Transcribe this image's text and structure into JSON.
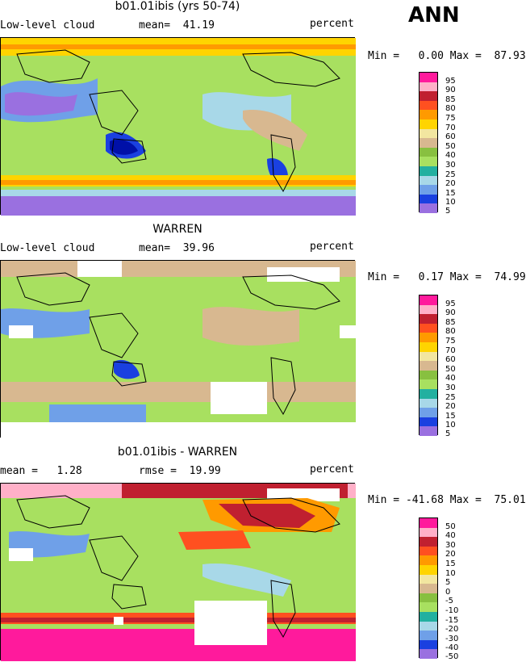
{
  "season": "ANN",
  "panels": [
    {
      "title": "b01.01ibis (yrs 50-74)",
      "left": "Low-level cloud",
      "mid": "mean=  41.19",
      "right": "percent",
      "minmax": "Min =   0.00 Max =  87.93",
      "legend": [
        "95",
        "90",
        "85",
        "80",
        "75",
        "70",
        "60",
        "50",
        "40",
        "30",
        "25",
        "20",
        "15",
        "10",
        "5"
      ]
    },
    {
      "title": "WARREN",
      "left": "Low-level cloud",
      "mid": "mean=  39.96",
      "right": "percent",
      "minmax": "Min =   0.17 Max =  74.99",
      "legend": [
        "95",
        "90",
        "85",
        "80",
        "75",
        "70",
        "60",
        "50",
        "40",
        "30",
        "25",
        "20",
        "15",
        "10",
        "5"
      ]
    },
    {
      "title": "b01.01ibis - WARREN",
      "left": "mean =   1.28",
      "mid": "rmse =  19.99",
      "right": "percent",
      "minmax": "Min = -41.68 Max =  75.01",
      "legend": [
        "50",
        "40",
        "30",
        "20",
        "15",
        "10",
        "5",
        "0",
        "-5",
        "-10",
        "-15",
        "-20",
        "-30",
        "-40",
        "-50"
      ]
    }
  ],
  "colors": {
    "abs_scale": [
      "#ff1a9c",
      "#ffb0c8",
      "#c02030",
      "#ff5020",
      "#ff9a00",
      "#ffd400",
      "#f2e6a0",
      "#d8b890",
      "#88c040",
      "#a8e060",
      "#22b0a0",
      "#a8d8e8",
      "#6fa0e8",
      "#1a40e0",
      "#0010a8",
      "#9a70e0"
    ],
    "diff_scale": [
      "#ff1a9c",
      "#ffb0c8",
      "#c02030",
      "#ff5020",
      "#ff9a00",
      "#ffd400",
      "#f2e6a0",
      "#d8b890",
      "#88c040",
      "#a8e060",
      "#22b0a0",
      "#a8d8e8",
      "#6fa0e8",
      "#1a40e0",
      "#0010a8",
      "#9a70e0"
    ]
  }
}
